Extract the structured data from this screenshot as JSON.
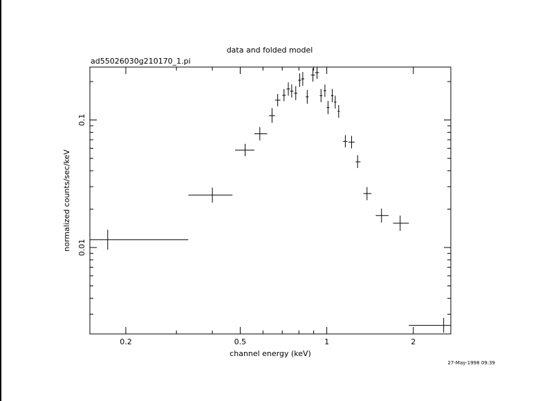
{
  "chart_data": {
    "type": "scatter",
    "title": "data and folded model",
    "subtitle": "ad55026030g210170_1.pi",
    "xlabel": "channel energy (keV)",
    "ylabel": "normalized counts/sec/keV",
    "timestamp": "27-May-1998 09:39",
    "x_scale": "log",
    "y_scale": "log",
    "xlim": [
      0.15,
      2.7
    ],
    "ylim": [
      0.0021,
      0.26
    ],
    "x_ticks": [
      {
        "value": 0.2,
        "label": "0.2"
      },
      {
        "value": 0.5,
        "label": "0.5"
      },
      {
        "value": 1,
        "label": "1"
      },
      {
        "value": 2,
        "label": "2"
      }
    ],
    "y_ticks": [
      {
        "value": 0.01,
        "label": "0.01"
      },
      {
        "value": 0.1,
        "label": "0.1"
      }
    ],
    "series": [
      {
        "points": [
          {
            "x": 0.173,
            "y": 0.0115,
            "x_lo": 0.15,
            "x_hi": 0.33,
            "y_lo": 0.0096,
            "y_hi": 0.0138
          },
          {
            "x": 0.4,
            "y": 0.0258,
            "x_lo": 0.33,
            "x_hi": 0.47,
            "y_lo": 0.0225,
            "y_hi": 0.0295
          },
          {
            "x": 0.52,
            "y": 0.058,
            "x_lo": 0.48,
            "x_hi": 0.56,
            "y_lo": 0.052,
            "y_hi": 0.065
          },
          {
            "x": 0.585,
            "y": 0.078,
            "x_lo": 0.56,
            "x_hi": 0.62,
            "y_lo": 0.069,
            "y_hi": 0.088
          },
          {
            "x": 0.645,
            "y": 0.108,
            "x_lo": 0.63,
            "x_hi": 0.66,
            "y_lo": 0.095,
            "y_hi": 0.124
          },
          {
            "x": 0.675,
            "y": 0.143,
            "x_lo": 0.66,
            "x_hi": 0.69,
            "y_lo": 0.128,
            "y_hi": 0.16
          },
          {
            "x": 0.71,
            "y": 0.156,
            "x_lo": 0.7,
            "x_hi": 0.72,
            "y_lo": 0.14,
            "y_hi": 0.175
          },
          {
            "x": 0.735,
            "y": 0.175,
            "x_lo": 0.725,
            "x_hi": 0.745,
            "y_lo": 0.155,
            "y_hi": 0.197
          },
          {
            "x": 0.755,
            "y": 0.168,
            "x_lo": 0.745,
            "x_hi": 0.765,
            "y_lo": 0.15,
            "y_hi": 0.19
          },
          {
            "x": 0.78,
            "y": 0.162,
            "x_lo": 0.77,
            "x_hi": 0.79,
            "y_lo": 0.143,
            "y_hi": 0.184
          },
          {
            "x": 0.805,
            "y": 0.205,
            "x_lo": 0.795,
            "x_hi": 0.815,
            "y_lo": 0.182,
            "y_hi": 0.232
          },
          {
            "x": 0.825,
            "y": 0.21,
            "x_lo": 0.815,
            "x_hi": 0.835,
            "y_lo": 0.185,
            "y_hi": 0.238
          },
          {
            "x": 0.855,
            "y": 0.152,
            "x_lo": 0.845,
            "x_hi": 0.865,
            "y_lo": 0.134,
            "y_hi": 0.172
          },
          {
            "x": 0.895,
            "y": 0.225,
            "x_lo": 0.88,
            "x_hi": 0.91,
            "y_lo": 0.2,
            "y_hi": 0.255
          },
          {
            "x": 0.925,
            "y": 0.235,
            "x_lo": 0.91,
            "x_hi": 0.94,
            "y_lo": 0.21,
            "y_hi": 0.262
          },
          {
            "x": 0.955,
            "y": 0.155,
            "x_lo": 0.945,
            "x_hi": 0.965,
            "y_lo": 0.138,
            "y_hi": 0.175
          },
          {
            "x": 0.985,
            "y": 0.17,
            "x_lo": 0.975,
            "x_hi": 0.995,
            "y_lo": 0.152,
            "y_hi": 0.19
          },
          {
            "x": 1.01,
            "y": 0.125,
            "x_lo": 1.0,
            "x_hi": 1.02,
            "y_lo": 0.111,
            "y_hi": 0.141
          },
          {
            "x": 1.045,
            "y": 0.155,
            "x_lo": 1.035,
            "x_hi": 1.055,
            "y_lo": 0.138,
            "y_hi": 0.175
          },
          {
            "x": 1.07,
            "y": 0.138,
            "x_lo": 1.06,
            "x_hi": 1.08,
            "y_lo": 0.123,
            "y_hi": 0.155
          },
          {
            "x": 1.1,
            "y": 0.117,
            "x_lo": 1.09,
            "x_hi": 1.11,
            "y_lo": 0.104,
            "y_hi": 0.131
          },
          {
            "x": 1.16,
            "y": 0.068,
            "x_lo": 1.14,
            "x_hi": 1.18,
            "y_lo": 0.061,
            "y_hi": 0.076
          },
          {
            "x": 1.22,
            "y": 0.067,
            "x_lo": 1.19,
            "x_hi": 1.25,
            "y_lo": 0.06,
            "y_hi": 0.075
          },
          {
            "x": 1.28,
            "y": 0.047,
            "x_lo": 1.26,
            "x_hi": 1.31,
            "y_lo": 0.042,
            "y_hi": 0.053
          },
          {
            "x": 1.38,
            "y": 0.0265,
            "x_lo": 1.34,
            "x_hi": 1.43,
            "y_lo": 0.0235,
            "y_hi": 0.0298
          },
          {
            "x": 1.55,
            "y": 0.0178,
            "x_lo": 1.48,
            "x_hi": 1.64,
            "y_lo": 0.0157,
            "y_hi": 0.0202
          },
          {
            "x": 1.8,
            "y": 0.0155,
            "x_lo": 1.7,
            "x_hi": 1.93,
            "y_lo": 0.0135,
            "y_hi": 0.0178
          },
          {
            "x": 2.55,
            "y": 0.00245,
            "x_lo": 1.93,
            "x_hi": 2.7,
            "y_lo": 0.00215,
            "y_hi": 0.0028
          }
        ]
      }
    ]
  }
}
